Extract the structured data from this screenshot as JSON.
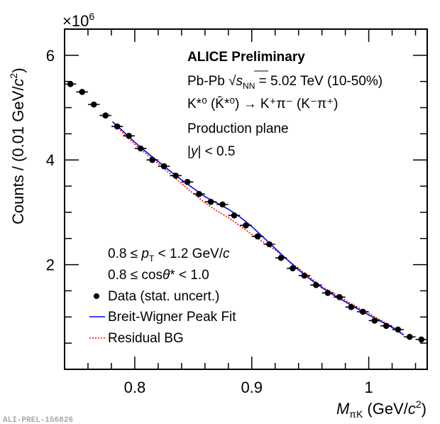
{
  "chart_data": {
    "type": "scatter",
    "title": "",
    "xlabel": {
      "main": "M",
      "sub": "πK",
      "unit_pre": " (GeV/",
      "unit_c": "c",
      "unit_sup": "2",
      "unit_post": ")"
    },
    "ylabel": {
      "pre": "Counts / (0.01 GeV/",
      "c": "c",
      "sup": "2",
      "post": ")"
    },
    "y_multiplier": {
      "base": "×10",
      "exp": "6"
    },
    "xlim": [
      0.74,
      1.05
    ],
    "ylim": [
      0,
      6.5
    ],
    "x_major_ticks": [
      0.8,
      0.9,
      1.0
    ],
    "x_tick_labels": [
      "0.8",
      "0.9",
      "1"
    ],
    "x_minor_step": 0.02,
    "y_major_ticks": [
      2,
      4,
      6
    ],
    "y_tick_labels": [
      "2",
      "4",
      "6"
    ],
    "y_minor_step": 0.5,
    "grid": false,
    "series": [
      {
        "name": "Data (stat. uncert.)",
        "kind": "points",
        "color": "#000000",
        "bin_width": 0.01,
        "x": [
          0.745,
          0.755,
          0.765,
          0.775,
          0.785,
          0.795,
          0.805,
          0.815,
          0.825,
          0.835,
          0.845,
          0.855,
          0.865,
          0.875,
          0.885,
          0.895,
          0.905,
          0.915,
          0.925,
          0.935,
          0.945,
          0.955,
          0.965,
          0.975,
          0.985,
          0.995,
          1.005,
          1.015,
          1.025,
          1.035,
          1.045
        ],
        "y": [
          5.45,
          5.3,
          5.06,
          4.85,
          4.64,
          4.46,
          4.22,
          4.0,
          3.88,
          3.7,
          3.58,
          3.35,
          3.2,
          3.15,
          2.94,
          2.75,
          2.54,
          2.39,
          2.13,
          1.93,
          1.79,
          1.61,
          1.46,
          1.38,
          1.19,
          1.1,
          0.93,
          0.83,
          0.76,
          0.62,
          0.57
        ]
      },
      {
        "name": "Breit-Wigner Peak Fit",
        "kind": "line",
        "color": "#0000ff",
        "x": [
          0.781,
          0.79,
          0.8,
          0.81,
          0.82,
          0.83,
          0.84,
          0.85,
          0.86,
          0.87,
          0.88,
          0.89,
          0.9,
          0.91,
          0.92,
          0.93,
          0.94,
          0.95,
          0.96,
          0.97,
          0.98,
          0.99,
          1.0,
          1.01,
          1.02,
          1.03
        ],
        "y": [
          4.73,
          4.55,
          4.34,
          4.15,
          3.97,
          3.79,
          3.62,
          3.46,
          3.3,
          3.18,
          3.06,
          2.91,
          2.73,
          2.52,
          2.31,
          2.1,
          1.9,
          1.72,
          1.56,
          1.42,
          1.29,
          1.16,
          1.04,
          0.92,
          0.8,
          0.66
        ]
      },
      {
        "name": "Residual BG",
        "kind": "line-dotted",
        "color": "#ff0000",
        "x": [
          0.781,
          0.79,
          0.8,
          0.81,
          0.82,
          0.83,
          0.84,
          0.85,
          0.86,
          0.87,
          0.88,
          0.89,
          0.9,
          0.91,
          0.92,
          0.93,
          0.94,
          0.95,
          0.96,
          0.97,
          0.98,
          0.99,
          1.0,
          1.01,
          1.02,
          1.03
        ],
        "y": [
          4.73,
          4.51,
          4.3,
          4.11,
          3.93,
          3.74,
          3.55,
          3.36,
          3.18,
          3.03,
          2.9,
          2.74,
          2.58,
          2.43,
          2.28,
          2.1,
          1.93,
          1.75,
          1.58,
          1.45,
          1.32,
          1.19,
          1.07,
          0.94,
          0.82,
          0.65
        ]
      }
    ],
    "annotations": {
      "experiment": "ALICE Preliminary",
      "system_pre": "Pb-Pb ",
      "sqrt_s": "s",
      "sqrt_sub": "NN",
      "system_post": " = 5.02 TeV (10-50%)",
      "decay": "K*⁰ (K̄*⁰) → K⁺π⁻ (K⁻π⁺)",
      "plane": "Production plane",
      "rapidity_y": "y",
      "rapidity_post": " < 0.5",
      "pt_pre": "0.8 ≤ ",
      "pt_p": "p",
      "pt_sub": "T",
      "pt_post": " < 1.2 GeV/",
      "pt_c": "c",
      "cos_pre": "0.8 ≤ cos",
      "cos_theta": "θ",
      "cos_post": "* < 1.0"
    },
    "legend": {
      "placement": "bottom-left",
      "entries": [
        "Data (stat. uncert.)",
        "Breit-Wigner Peak Fit",
        "Residual BG"
      ]
    },
    "footer_id": "ALI-PREL-156826"
  }
}
